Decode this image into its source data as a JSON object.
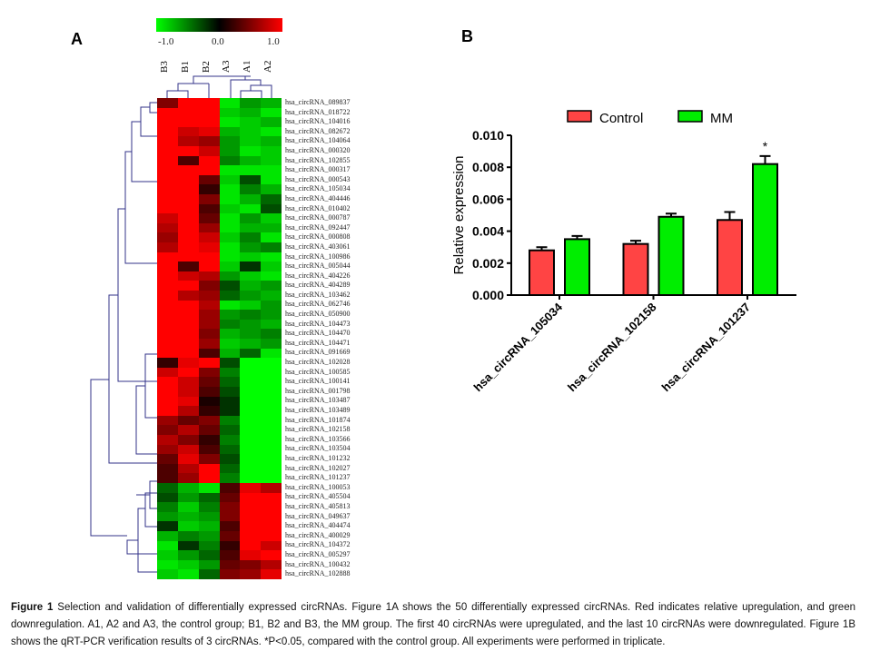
{
  "panels": {
    "a": "A",
    "b": "B"
  },
  "heatmap": {
    "colorbar": {
      "min_label": "-1.0",
      "mid_label": "0.0",
      "max_label": "1.0",
      "low_color": "#00ff00",
      "mid_color": "#000000",
      "high_color": "#ff0000"
    },
    "columns": [
      "B3",
      "B1",
      "B2",
      "A3",
      "A1",
      "A2"
    ],
    "rows": [
      "hsa_circRNA_089837",
      "hsa_circRNA_018722",
      "hsa_circRNA_104016",
      "hsa_circRNA_082672",
      "hsa_circRNA_104064",
      "hsa_circRNA_000320",
      "hsa_circRNA_102855",
      "hsa_circRNA_000317",
      "hsa_circRNA_000543",
      "hsa_circRNA_105034",
      "hsa_circRNA_404446",
      "hsa_circRNA_010402",
      "hsa_circRNA_000787",
      "hsa_circRNA_092447",
      "hsa_circRNA_000808",
      "hsa_circRNA_403061",
      "hsa_circRNA_100986",
      "hsa_circRNA_005044",
      "hsa_circRNA_404226",
      "hsa_circRNA_404289",
      "hsa_circRNA_103462",
      "hsa_circRNA_062746",
      "hsa_circRNA_050900",
      "hsa_circRNA_104473",
      "hsa_circRNA_104470",
      "hsa_circRNA_104471",
      "hsa_circRNA_091669",
      "hsa_circRNA_102028",
      "hsa_circRNA_100585",
      "hsa_circRNA_100141",
      "hsa_circRNA_001798",
      "hsa_circRNA_103487",
      "hsa_circRNA_103489",
      "hsa_circRNA_101874",
      "hsa_circRNA_102158",
      "hsa_circRNA_103566",
      "hsa_circRNA_103504",
      "hsa_circRNA_101232",
      "hsa_circRNA_102027",
      "hsa_circRNA_101237",
      "hsa_circRNA_100053",
      "hsa_circRNA_405504",
      "hsa_circRNA_405813",
      "hsa_circRNA_049637",
      "hsa_circRNA_404474",
      "hsa_circRNA_400029",
      "hsa_circRNA_104372",
      "hsa_circRNA_005297",
      "hsa_circRNA_100432",
      "hsa_circRNA_102888"
    ],
    "values": [
      [
        0.5,
        1,
        1,
        -0.9,
        -0.6,
        -0.7
      ],
      [
        1,
        1,
        1,
        -0.8,
        -0.7,
        -0.9
      ],
      [
        1,
        1,
        1,
        -0.9,
        -0.8,
        -0.7
      ],
      [
        1,
        0.8,
        0.9,
        -0.7,
        -0.8,
        -0.9
      ],
      [
        1,
        0.7,
        0.6,
        -0.6,
        -0.8,
        -0.7
      ],
      [
        1,
        1,
        0.8,
        -0.6,
        -0.9,
        -0.8
      ],
      [
        1,
        0.3,
        1,
        -0.5,
        -0.7,
        -0.8
      ],
      [
        1,
        1,
        1,
        -0.9,
        -0.9,
        -0.9
      ],
      [
        1,
        1,
        0.4,
        -0.8,
        -0.3,
        -0.9
      ],
      [
        1,
        1,
        0.2,
        -0.9,
        -0.5,
        -0.7
      ],
      [
        1,
        1,
        0.5,
        -0.9,
        -0.7,
        -0.4
      ],
      [
        1,
        1,
        0.3,
        -0.8,
        -0.9,
        -0.3
      ],
      [
        0.8,
        1,
        0.4,
        -0.9,
        -0.6,
        -0.8
      ],
      [
        0.7,
        1,
        0.6,
        -0.9,
        -0.7,
        -0.7
      ],
      [
        0.6,
        1,
        0.8,
        -0.8,
        -0.5,
        -0.9
      ],
      [
        0.7,
        1,
        0.9,
        -0.9,
        -0.6,
        -0.5
      ],
      [
        1,
        1,
        1,
        -0.9,
        -0.8,
        -0.9
      ],
      [
        1,
        0.3,
        1,
        -0.8,
        -0.2,
        -0.8
      ],
      [
        1,
        0.8,
        0.7,
        -0.6,
        -0.8,
        -0.9
      ],
      [
        1,
        1,
        0.5,
        -0.3,
        -0.7,
        -0.6
      ],
      [
        1,
        0.7,
        0.6,
        -0.4,
        -0.6,
        -0.7
      ],
      [
        1,
        1,
        0.7,
        -0.9,
        -0.8,
        -0.6
      ],
      [
        1,
        1,
        0.6,
        -0.6,
        -0.5,
        -0.6
      ],
      [
        1,
        1,
        0.6,
        -0.5,
        -0.6,
        -0.7
      ],
      [
        1,
        1,
        0.5,
        -0.7,
        -0.6,
        -0.5
      ],
      [
        1,
        1,
        0.6,
        -0.8,
        -0.7,
        -0.6
      ],
      [
        1,
        1,
        0.3,
        -0.7,
        -0.4,
        -0.9
      ],
      [
        0.2,
        0.9,
        1,
        -0.3,
        -1,
        -1
      ],
      [
        0.8,
        1,
        0.5,
        -0.5,
        -1,
        -1
      ],
      [
        1,
        0.8,
        0.4,
        -0.4,
        -1,
        -1
      ],
      [
        1,
        0.8,
        0.3,
        -0.3,
        -1,
        -1
      ],
      [
        1,
        0.9,
        0.1,
        -0.2,
        -1,
        -1
      ],
      [
        1,
        0.7,
        0.2,
        -0.2,
        -1,
        -1
      ],
      [
        0.6,
        0.4,
        0.5,
        -0.5,
        -1,
        -1
      ],
      [
        0.5,
        0.7,
        0.4,
        -0.4,
        -1,
        -1
      ],
      [
        0.7,
        0.5,
        0.2,
        -0.5,
        -1,
        -1
      ],
      [
        0.6,
        0.8,
        0.3,
        -0.4,
        -1,
        -1
      ],
      [
        0.4,
        0.9,
        0.5,
        -0.3,
        -1,
        -1
      ],
      [
        0.3,
        0.7,
        1,
        -0.4,
        -1,
        -1
      ],
      [
        0.3,
        0.6,
        1,
        -0.5,
        -1,
        -1
      ],
      [
        -0.4,
        -0.7,
        -0.9,
        0.3,
        0.9,
        0.7
      ],
      [
        -0.3,
        -0.6,
        -0.4,
        0.4,
        1,
        1
      ],
      [
        -0.5,
        -0.8,
        -0.5,
        0.5,
        1,
        1
      ],
      [
        -0.6,
        -0.7,
        -0.6,
        0.5,
        1,
        1
      ],
      [
        -0.2,
        -0.8,
        -0.7,
        0.3,
        1,
        1
      ],
      [
        -0.7,
        -0.5,
        -0.6,
        0.4,
        1,
        1
      ],
      [
        -0.9,
        -0.2,
        -0.5,
        0.2,
        1,
        0.8
      ],
      [
        -0.8,
        -0.6,
        -0.4,
        0.3,
        0.9,
        1
      ],
      [
        -0.9,
        -0.8,
        -0.6,
        0.4,
        0.5,
        0.7
      ],
      [
        -0.8,
        -0.9,
        -0.4,
        0.5,
        0.6,
        0.9
      ]
    ]
  },
  "chart_data": {
    "type": "bar",
    "categories": [
      "hsa_circRNA_105034",
      "hsa_circRNA_102158",
      "hsa_circRNA_101237"
    ],
    "series": [
      {
        "name": "Control",
        "color": "#ff4444",
        "values": [
          0.0028,
          0.0032,
          0.0047
        ],
        "errors": [
          0.0002,
          0.0002,
          0.0005
        ]
      },
      {
        "name": "MM",
        "color": "#00ee00",
        "values": [
          0.0035,
          0.0049,
          0.0082
        ],
        "errors": [
          0.0002,
          0.0002,
          0.0005
        ]
      }
    ],
    "annotations": [
      {
        "category": "hsa_circRNA_101237",
        "series": "MM",
        "text": "*"
      }
    ],
    "ylabel": "Relative expression",
    "xlabel": "",
    "ylim": [
      0,
      0.01
    ],
    "yticks": [
      "0.000",
      "0.002",
      "0.004",
      "0.006",
      "0.008",
      "0.010"
    ],
    "legend": "top"
  },
  "caption": {
    "label": "Figure 1",
    "text": " Selection and validation of differentially expressed circRNAs. Figure 1A shows the 50 differentially expressed circRNAs. Red indicates relative upregulation, and green downregulation. A1, A2 and A3, the control group; B1, B2 and B3, the MM group. The first 40 circRNAs were upregulated, and the last 10 circRNAs were downregulated. Figure 1B shows the qRT-PCR verification results of 3 circRNAs. *P<0.05, compared with the control group. All experiments were performed in triplicate."
  }
}
